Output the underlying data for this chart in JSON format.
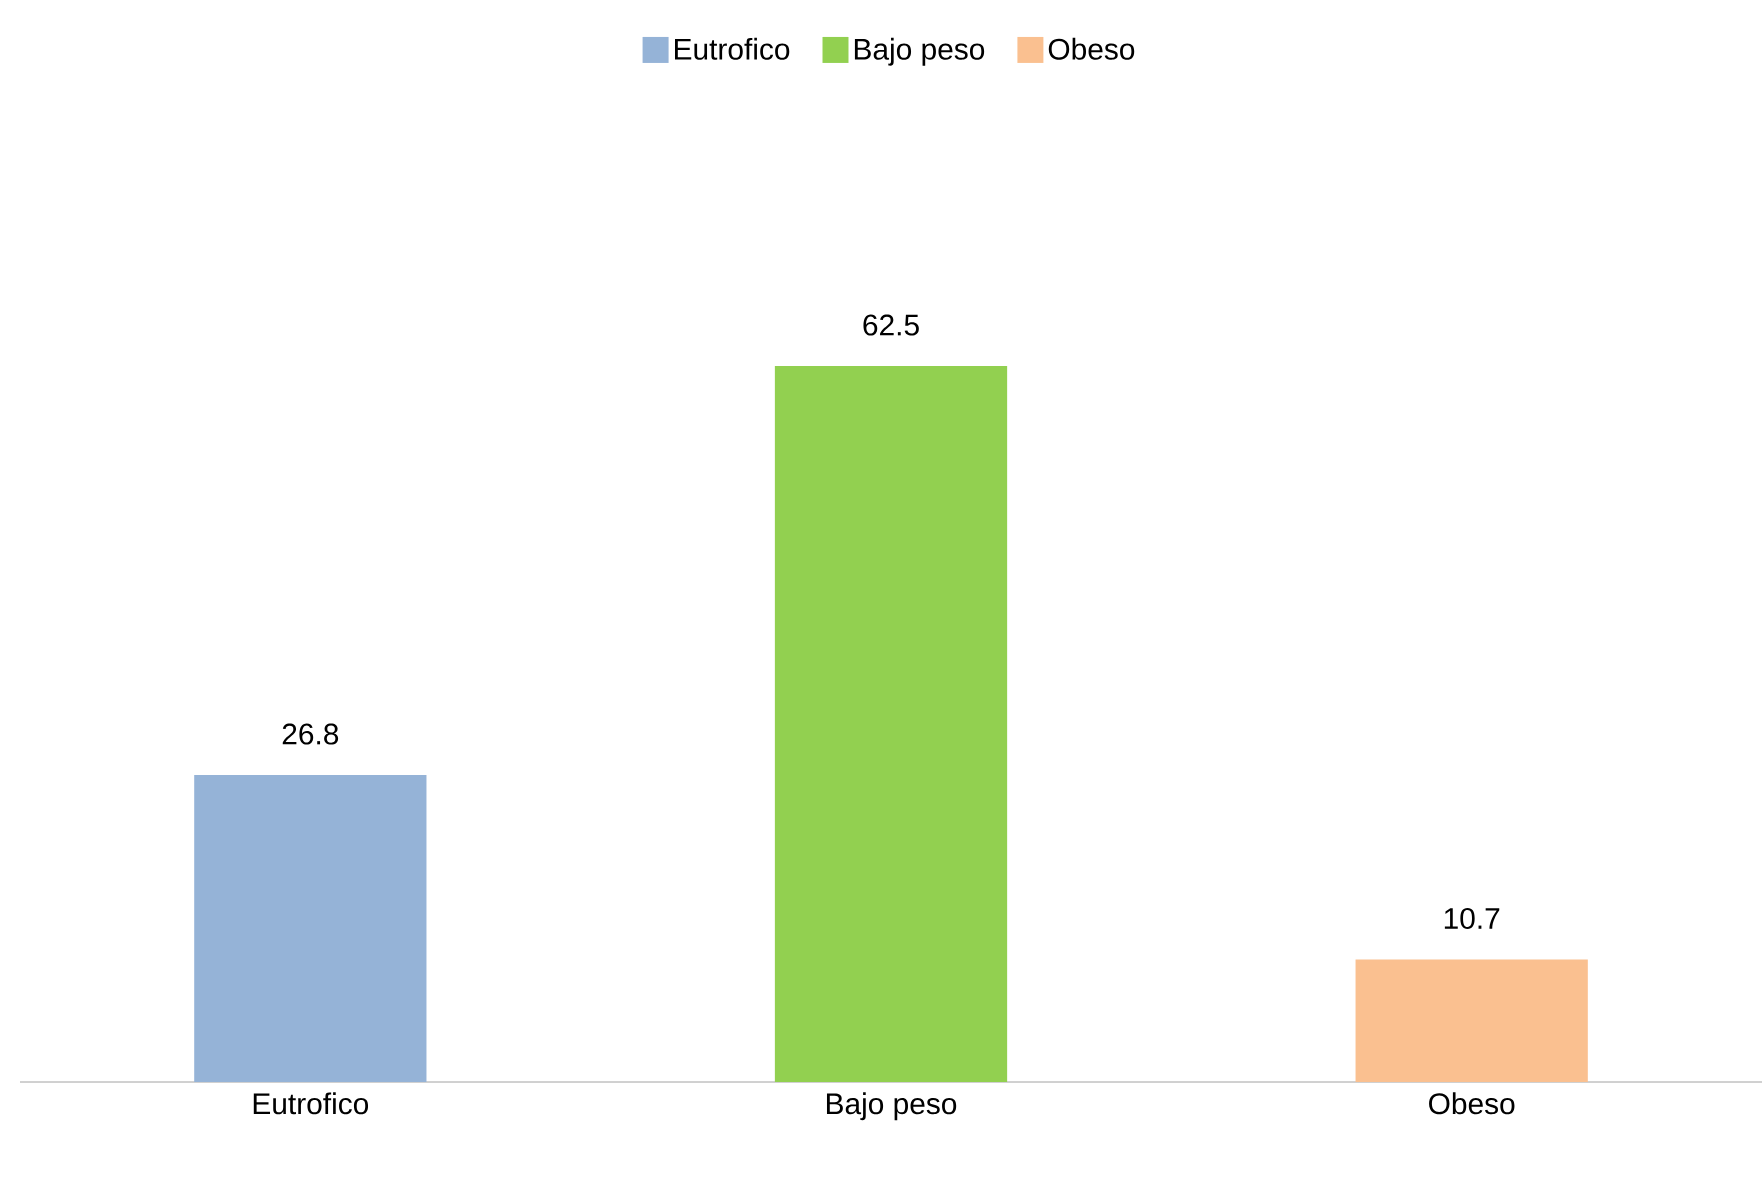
{
  "chart_data": {
    "type": "bar",
    "categories": [
      "Eutrofico",
      "Bajo peso",
      "Obeso"
    ],
    "series": [
      {
        "name": "Eutrofico",
        "color": "#95b3d7",
        "values": [
          26.8,
          null,
          null
        ]
      },
      {
        "name": "Bajo peso",
        "color": "#92d050",
        "values": [
          null,
          62.5,
          null
        ]
      },
      {
        "name": "Obeso",
        "color": "#fac090",
        "values": [
          null,
          null,
          10.7
        ]
      }
    ],
    "tick_labels": "x",
    "data_labels": true,
    "legend": "top"
  }
}
